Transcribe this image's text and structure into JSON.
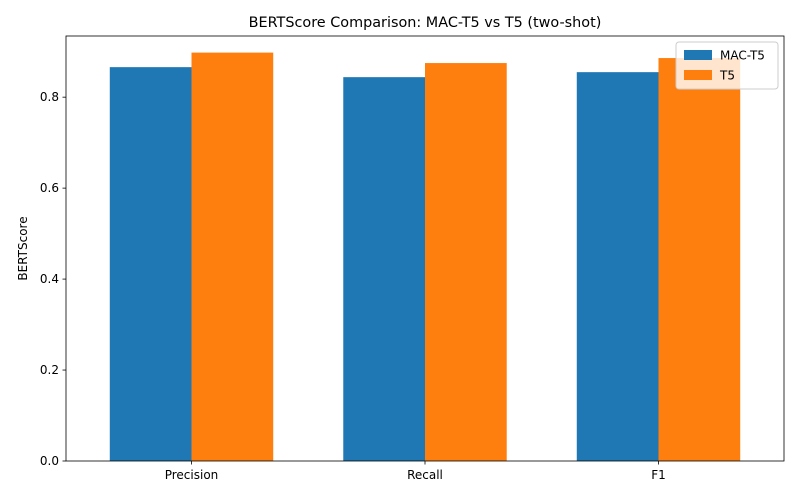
{
  "chart_data": {
    "type": "bar",
    "title": "BERTScore Comparison: MAC-T5 vs T5 (two-shot)",
    "xlabel": "",
    "ylabel": "BERTScore",
    "categories": [
      "Precision",
      "Recall",
      "F1"
    ],
    "series": [
      {
        "name": "MAC-T5",
        "values": [
          0.866,
          0.844,
          0.855
        ],
        "color": "#1f77b4"
      },
      {
        "name": "T5",
        "values": [
          0.898,
          0.875,
          0.886
        ],
        "color": "#ff7f0e"
      }
    ],
    "ylim": [
      0,
      0.9345
    ],
    "yticks": [
      0.0,
      0.2,
      0.4,
      0.6,
      0.8
    ],
    "ytick_labels": [
      "0.0",
      "0.2",
      "0.4",
      "0.6",
      "0.8"
    ],
    "grid": false,
    "legend_position": "top-right"
  }
}
